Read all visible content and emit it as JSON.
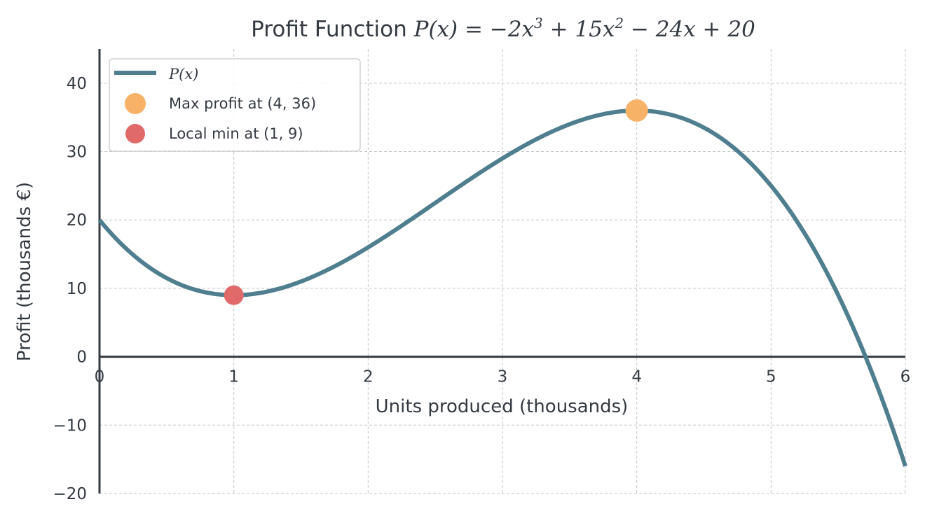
{
  "chart_data": {
    "type": "line",
    "title": "Profit Function P(x) = −2x³ + 15x² − 24x + 20",
    "title_parts": {
      "prefix": "Profit Function ",
      "math": "P(x) = −2x",
      "exp1": "3",
      "mid1": " + 15x",
      "exp2": "2",
      "rest": " − 24x + 20"
    },
    "xlabel": "Units produced (thousands)",
    "ylabel": "Profit (thousands €)",
    "xlim": [
      0,
      6
    ],
    "ylim": [
      -20,
      45
    ],
    "xticks": [
      0,
      1,
      2,
      3,
      4,
      5,
      6
    ],
    "xtick_labels": [
      "0",
      "1",
      "2",
      "3",
      "4",
      "5",
      "6"
    ],
    "yticks": [
      -20,
      -10,
      0,
      10,
      20,
      30,
      40
    ],
    "ytick_labels": [
      "−20",
      "−10",
      "0",
      "10",
      "20",
      "30",
      "40"
    ],
    "grid": true,
    "legend_position": "top-left",
    "function": {
      "coefficients": [
        -2,
        15,
        -24,
        20
      ],
      "x_range": [
        0,
        6
      ]
    },
    "series": [
      {
        "name": "P(x)",
        "color": "#4f7f8f"
      }
    ],
    "points": [
      {
        "name": "Max profit at (4, 36)",
        "x": 4,
        "y": 36,
        "color": "#f7b267"
      },
      {
        "name": "Local min at (1, 9)",
        "x": 1,
        "y": 9,
        "color": "#e06a6a"
      }
    ]
  }
}
